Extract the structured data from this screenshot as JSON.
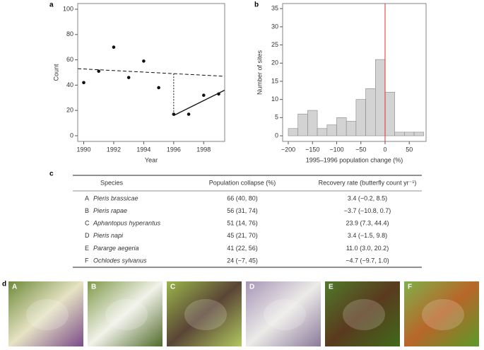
{
  "chart_data": [
    {
      "type": "scatter",
      "panel": "a",
      "x_label": "Year",
      "y_label": "Count",
      "x": [
        1990,
        1991,
        1992,
        1993,
        1994,
        1995,
        1996,
        1997,
        1998,
        1999
      ],
      "values": [
        42,
        51,
        70,
        46,
        59,
        38,
        17,
        17,
        32,
        33
      ],
      "color": "#111111",
      "lines": [
        {
          "style": "dashed",
          "x": [
            1989.6,
            1999.4
          ],
          "y": [
            53,
            47
          ]
        },
        {
          "style": "dotted",
          "x": [
            1996,
            1996
          ],
          "y": [
            49,
            16
          ]
        },
        {
          "style": "solid",
          "x": [
            1996,
            1999.4
          ],
          "y": [
            16,
            36
          ]
        }
      ],
      "xlim": [
        1989.6,
        1999.4
      ],
      "ylim": [
        -4.5,
        104.5
      ],
      "xticks": [
        1990,
        1992,
        1994,
        1996,
        1998
      ],
      "yticks": [
        0,
        20,
        40,
        60,
        80,
        100
      ],
      "grid": false
    },
    {
      "type": "histogram",
      "panel": "b",
      "x_label": "1995–1996 population change (%)",
      "y_label": "Number of sites",
      "bins": [
        -200,
        -180,
        -160,
        -140,
        -120,
        -100,
        -80,
        -60,
        -40,
        -20,
        0,
        20,
        40,
        60,
        80
      ],
      "values": [
        2,
        6,
        7,
        2,
        3,
        5,
        4,
        10,
        13,
        21,
        12,
        1,
        1,
        1
      ],
      "color": "#d3d3d3",
      "vline": {
        "x": 0,
        "color": "#e03030"
      },
      "xlim": [
        -211.7,
        84.7
      ],
      "ylim": [
        -1.55,
        36.4
      ],
      "xticks": [
        {
          "value": -200,
          "label": "−200"
        },
        {
          "value": -150,
          "label": "−150"
        },
        {
          "value": -100,
          "label": "−100"
        },
        {
          "value": -50,
          "label": "−50"
        },
        0,
        50
      ],
      "yticks": [
        0,
        5,
        10,
        15,
        20,
        25,
        30,
        35
      ],
      "grid": false
    }
  ],
  "table": {
    "panel": "c",
    "header": [
      "Species",
      "Population collapse (%)",
      "Recovery rate (butterfly count yr⁻¹)"
    ],
    "rows": [
      [
        "A",
        "Pieris brassicae",
        "66 (40, 80)",
        "3.4 (−0.2, 8.5)"
      ],
      [
        "B",
        "Pieris rapae",
        "56 (31, 74)",
        "−3.7 (−10.8, 0.7)"
      ],
      [
        "C",
        "Aphantopus hyperantus",
        "51 (14, 76)",
        "23.9 (7.3, 44.4)"
      ],
      [
        "D",
        "Pieris napi",
        "45 (21, 70)",
        "3.4 (−1.5, 9.8)"
      ],
      [
        "E",
        "Pararge aegeria",
        "41 (22, 56)",
        "11.0 (3.0, 20.2)"
      ],
      [
        "F",
        "Ochlodes sylvanus",
        "24 (−7, 45)",
        "−4.7 (−9.7, 1.0)"
      ]
    ]
  },
  "photos": {
    "panel": "d",
    "labels": [
      "A",
      "B",
      "C",
      "D",
      "E",
      "F"
    ]
  }
}
